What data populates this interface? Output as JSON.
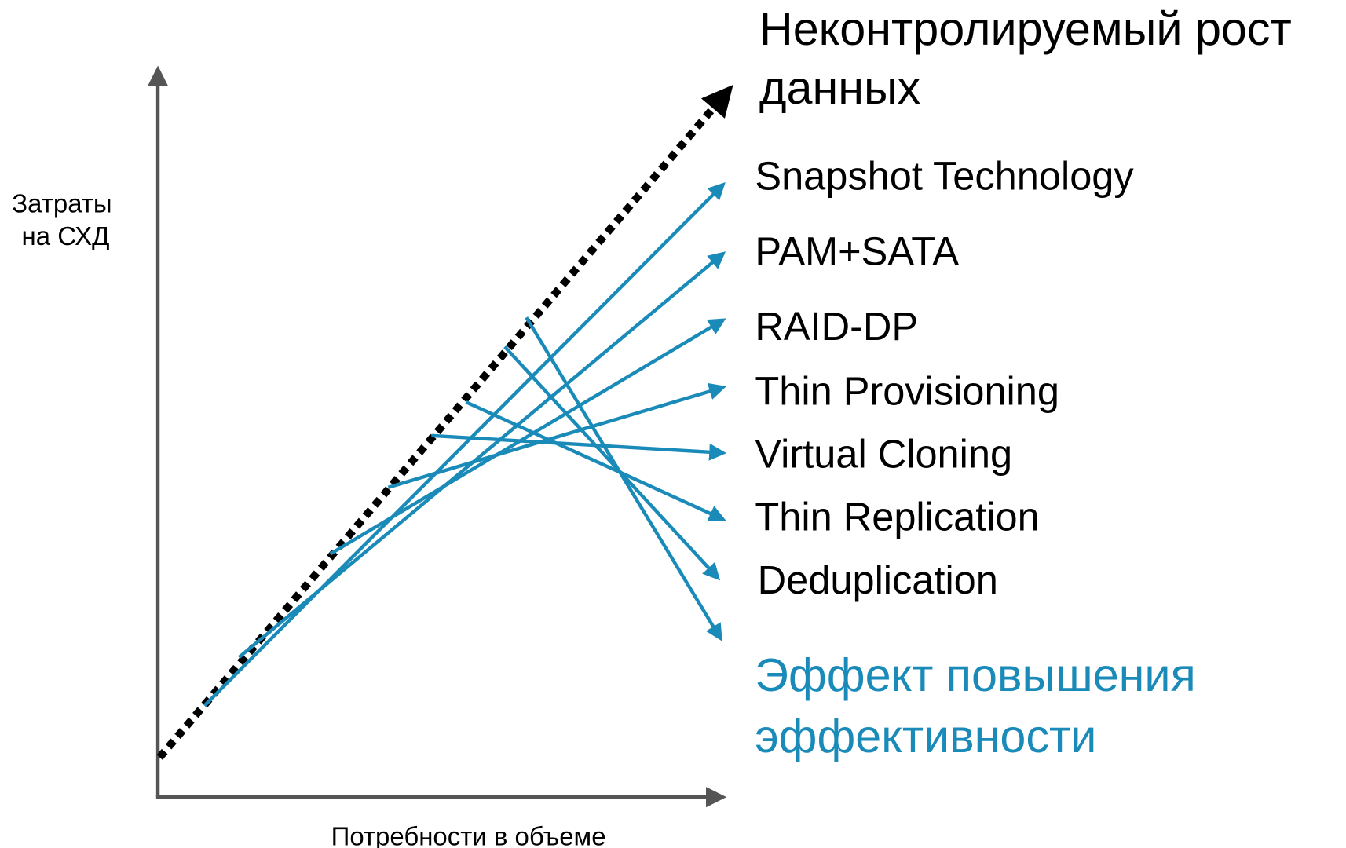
{
  "axis": {
    "y_label": [
      "Затраты",
      "на СХД"
    ],
    "x_label": "Потребности в объеме"
  },
  "trend": {
    "label": [
      "Неконтролируемый рост",
      "данных"
    ]
  },
  "techniques": [
    "Snapshot Technology",
    "PAM+SATA",
    "RAID-DP",
    "Thin Provisioning",
    "Virtual Cloning",
    "Thin Replication",
    "Deduplication"
  ],
  "effect": {
    "label": [
      "Эффект повышения",
      "эффективности"
    ]
  }
}
